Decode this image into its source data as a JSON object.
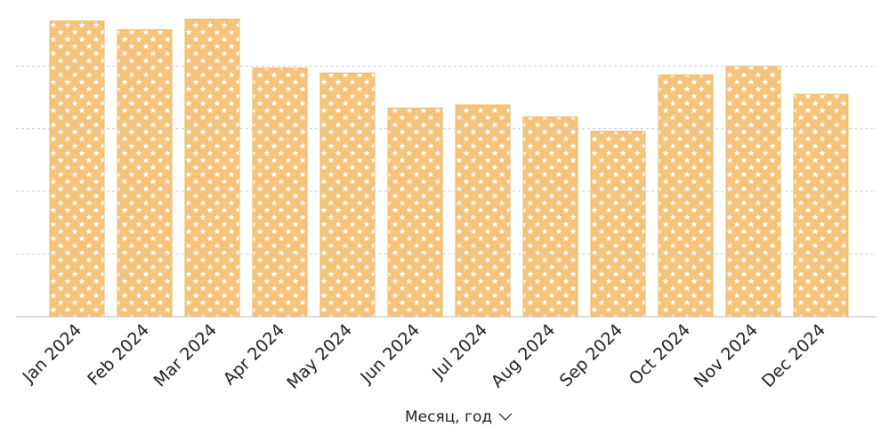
{
  "chart_data": {
    "type": "bar",
    "x_label": "Месяц, год",
    "categories": [
      "Jan 2024",
      "Feb 2024",
      "Mar 2024",
      "Apr 2024",
      "May 2024",
      "Jun 2024",
      "Jul 2024",
      "Aug 2024",
      "Sep 2024",
      "Oct 2024",
      "Nov 2024",
      "Dec 2024"
    ],
    "values": [
      4.72,
      4.58,
      4.75,
      3.97,
      3.89,
      3.33,
      3.38,
      3.19,
      2.96,
      3.86,
      4.0,
      3.55
    ],
    "color": "#f5c47a",
    "ylim": [
      0,
      4.9
    ],
    "yticks": [
      0,
      1,
      2,
      3,
      4
    ],
    "grid": true
  }
}
